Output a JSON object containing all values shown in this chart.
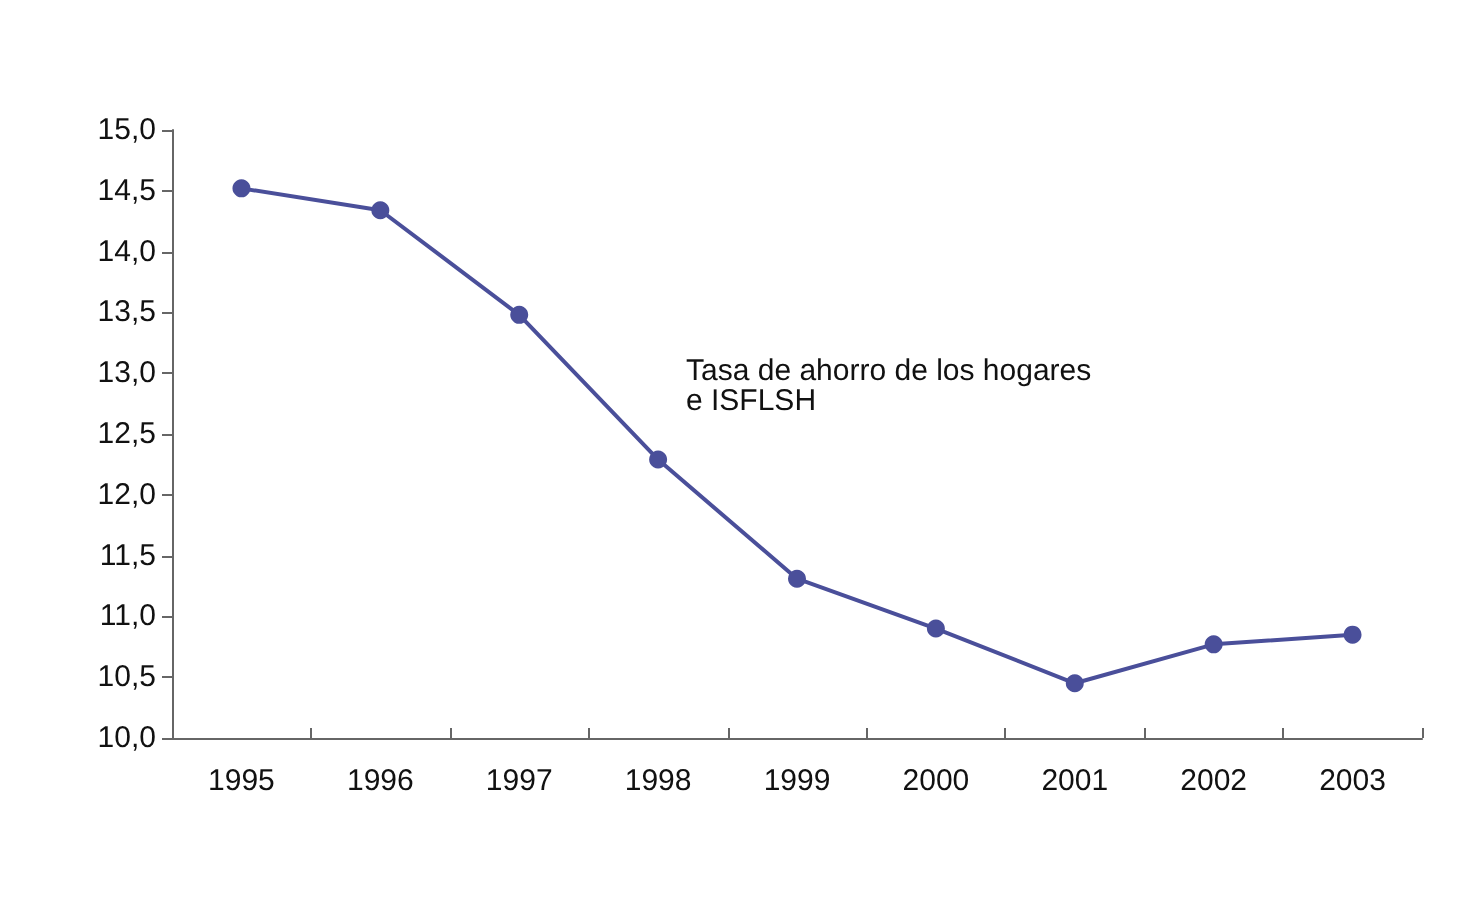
{
  "chart_data": {
    "type": "line",
    "categories": [
      "1995",
      "1996",
      "1997",
      "1998",
      "1999",
      "2000",
      "2001",
      "2002",
      "2003"
    ],
    "series": [
      {
        "color": "#4a4f9a",
        "values": [
          14.52,
          14.34,
          13.48,
          12.29,
          11.31,
          10.9,
          10.45,
          10.77,
          10.85
        ]
      }
    ],
    "ylim": [
      10,
      15
    ],
    "yticks": [
      {
        "value": 10,
        "label": "10,0"
      },
      {
        "value": 10.5,
        "label": "10,5"
      },
      {
        "value": 11,
        "label": "11,0"
      },
      {
        "value": 11.5,
        "label": "11,5"
      },
      {
        "value": 12,
        "label": "12,0"
      },
      {
        "value": 12.5,
        "label": "12,5"
      },
      {
        "value": 13,
        "label": "13,0"
      },
      {
        "value": 13.5,
        "label": "13,5"
      },
      {
        "value": 14,
        "label": "14,0"
      },
      {
        "value": 14.5,
        "label": "14,5"
      },
      {
        "value": 15,
        "label": "15,0"
      }
    ],
    "annotations": [
      {
        "text": "Tasa de ahorro de los hogares\ne ISFLSH"
      }
    ],
    "grid": false,
    "marker": "circle",
    "line_style": "solid"
  }
}
